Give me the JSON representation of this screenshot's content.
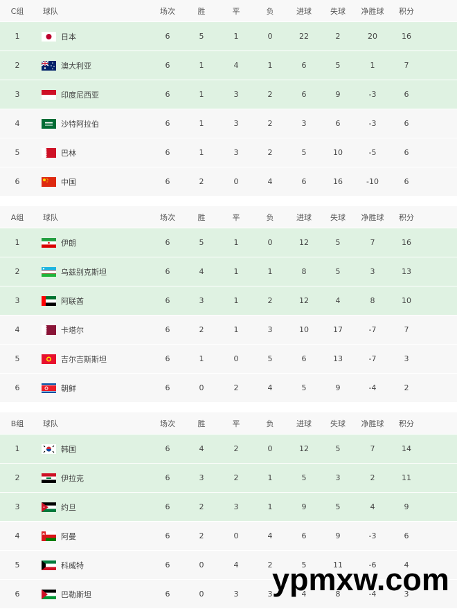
{
  "columns": [
    "球队",
    "场次",
    "胜",
    "平",
    "负",
    "进球",
    "失球",
    "净胜球",
    "积分"
  ],
  "groups": [
    {
      "label": "C组",
      "rows": [
        {
          "rank": "1",
          "team": "日本",
          "flag": "japan",
          "p": "6",
          "w": "5",
          "d": "1",
          "l": "0",
          "gf": "22",
          "ga": "2",
          "gd": "20",
          "pts": "16"
        },
        {
          "rank": "2",
          "team": "澳大利亚",
          "flag": "australia",
          "p": "6",
          "w": "1",
          "d": "4",
          "l": "1",
          "gf": "6",
          "ga": "5",
          "gd": "1",
          "pts": "7"
        },
        {
          "rank": "3",
          "team": "印度尼西亚",
          "flag": "indonesia",
          "p": "6",
          "w": "1",
          "d": "3",
          "l": "2",
          "gf": "6",
          "ga": "9",
          "gd": "-3",
          "pts": "6"
        },
        {
          "rank": "4",
          "team": "沙特阿拉伯",
          "flag": "saudi-arabia",
          "p": "6",
          "w": "1",
          "d": "3",
          "l": "2",
          "gf": "3",
          "ga": "6",
          "gd": "-3",
          "pts": "6"
        },
        {
          "rank": "5",
          "team": "巴林",
          "flag": "bahrain",
          "p": "6",
          "w": "1",
          "d": "3",
          "l": "2",
          "gf": "5",
          "ga": "10",
          "gd": "-5",
          "pts": "6"
        },
        {
          "rank": "6",
          "team": "中国",
          "flag": "china",
          "p": "6",
          "w": "2",
          "d": "0",
          "l": "4",
          "gf": "6",
          "ga": "16",
          "gd": "-10",
          "pts": "6"
        }
      ]
    },
    {
      "label": "A组",
      "rows": [
        {
          "rank": "1",
          "team": "伊朗",
          "flag": "iran",
          "p": "6",
          "w": "5",
          "d": "1",
          "l": "0",
          "gf": "12",
          "ga": "5",
          "gd": "7",
          "pts": "16"
        },
        {
          "rank": "2",
          "team": "乌兹别克斯坦",
          "flag": "uzbekistan",
          "p": "6",
          "w": "4",
          "d": "1",
          "l": "1",
          "gf": "8",
          "ga": "5",
          "gd": "3",
          "pts": "13"
        },
        {
          "rank": "3",
          "team": "阿联酋",
          "flag": "uae",
          "p": "6",
          "w": "3",
          "d": "1",
          "l": "2",
          "gf": "12",
          "ga": "4",
          "gd": "8",
          "pts": "10"
        },
        {
          "rank": "4",
          "team": "卡塔尔",
          "flag": "qatar",
          "p": "6",
          "w": "2",
          "d": "1",
          "l": "3",
          "gf": "10",
          "ga": "17",
          "gd": "-7",
          "pts": "7"
        },
        {
          "rank": "5",
          "team": "吉尔吉斯斯坦",
          "flag": "kyrgyzstan",
          "p": "6",
          "w": "1",
          "d": "0",
          "l": "5",
          "gf": "6",
          "ga": "13",
          "gd": "-7",
          "pts": "3"
        },
        {
          "rank": "6",
          "team": "朝鲜",
          "flag": "north-korea",
          "p": "6",
          "w": "0",
          "d": "2",
          "l": "4",
          "gf": "5",
          "ga": "9",
          "gd": "-4",
          "pts": "2"
        }
      ]
    },
    {
      "label": "B组",
      "rows": [
        {
          "rank": "1",
          "team": "韩国",
          "flag": "south-korea",
          "p": "6",
          "w": "4",
          "d": "2",
          "l": "0",
          "gf": "12",
          "ga": "5",
          "gd": "7",
          "pts": "14"
        },
        {
          "rank": "2",
          "team": "伊拉克",
          "flag": "iraq",
          "p": "6",
          "w": "3",
          "d": "2",
          "l": "1",
          "gf": "5",
          "ga": "3",
          "gd": "2",
          "pts": "11"
        },
        {
          "rank": "3",
          "team": "约旦",
          "flag": "jordan",
          "p": "6",
          "w": "2",
          "d": "3",
          "l": "1",
          "gf": "9",
          "ga": "5",
          "gd": "4",
          "pts": "9"
        },
        {
          "rank": "4",
          "team": "阿曼",
          "flag": "oman",
          "p": "6",
          "w": "2",
          "d": "0",
          "l": "4",
          "gf": "6",
          "ga": "9",
          "gd": "-3",
          "pts": "6"
        },
        {
          "rank": "5",
          "team": "科威特",
          "flag": "kuwait",
          "p": "6",
          "w": "0",
          "d": "4",
          "l": "2",
          "gf": "5",
          "ga": "11",
          "gd": "-6",
          "pts": "4"
        },
        {
          "rank": "6",
          "team": "巴勒斯坦",
          "flag": "palestine",
          "p": "6",
          "w": "0",
          "d": "3",
          "l": "3",
          "gf": "4",
          "ga": "8",
          "gd": "-4",
          "pts": "3"
        }
      ]
    }
  ],
  "colors": {
    "qualified_row": "#dff2e2",
    "other_row": "#f7f7f7"
  },
  "watermark": "ypmxw.com"
}
